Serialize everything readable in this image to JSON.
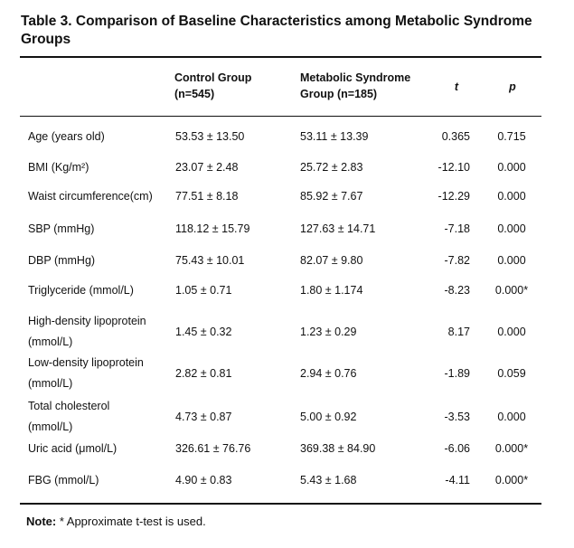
{
  "title": "Table 3. Comparison of Baseline Characteristics among Metabolic Syndrome Groups",
  "headers": {
    "control": "Control Group\n(n=545)",
    "metabolic": "Metabolic Syndrome\nGroup (n=185)",
    "t": "t",
    "p": "p"
  },
  "rows": [
    {
      "variable": "Age (years old)",
      "control": "53.53 ± 13.50",
      "metabolic": "53.11 ± 13.39",
      "t": "0.365",
      "p": "0.715"
    },
    {
      "variable": "BMI (Kg/m²)",
      "control": "23.07 ± 2.48",
      "metabolic": "25.72 ± 2.83",
      "t": "-12.10",
      "p": "0.000"
    },
    {
      "variable": "Waist circumference(cm)",
      "control": "77.51 ± 8.18",
      "metabolic": "85.92 ± 7.67",
      "t": "-12.29",
      "p": "0.000"
    },
    {
      "variable": "SBP (mmHg)",
      "control": "118.12 ± 15.79",
      "metabolic": "127.63 ± 14.71",
      "t": "-7.18",
      "p": "0.000"
    },
    {
      "variable": "DBP (mmHg)",
      "control": "75.43 ± 10.01",
      "metabolic": "82.07 ± 9.80",
      "t": "-7.82",
      "p": "0.000"
    },
    {
      "variable": "Triglyceride (mmol/L)",
      "control": "1.05 ± 0.71",
      "metabolic": "1.80 ± 1.174",
      "t": "-8.23",
      "p": "0.000*"
    },
    {
      "variable": "High-density lipoprotein\n(mmol/L)",
      "control": "1.45 ± 0.32",
      "metabolic": "1.23 ± 0.29",
      "t": "8.17",
      "p": "0.000"
    },
    {
      "variable": "Low-density lipoprotein\n(mmol/L)",
      "control": "2.82 ± 0.81",
      "metabolic": "2.94 ± 0.76",
      "t": "-1.89",
      "p": "0.059"
    },
    {
      "variable": "Total cholesterol\n(mmol/L)",
      "control": "4.73 ± 0.87",
      "metabolic": "5.00 ± 0.92",
      "t": "-3.53",
      "p": "0.000"
    },
    {
      "variable": "Uric acid (μmol/L)",
      "control": "326.61 ± 76.76",
      "metabolic": "369.38 ± 84.90",
      "t": "-6.06",
      "p": "0.000*"
    },
    {
      "variable": "FBG (mmol/L)",
      "control": "4.90 ± 0.83",
      "metabolic": "5.43 ± 1.68",
      "t": "-4.11",
      "p": "0.000*"
    }
  ],
  "note": {
    "label": "Note:",
    "text": " * Approximate t-test is used."
  }
}
